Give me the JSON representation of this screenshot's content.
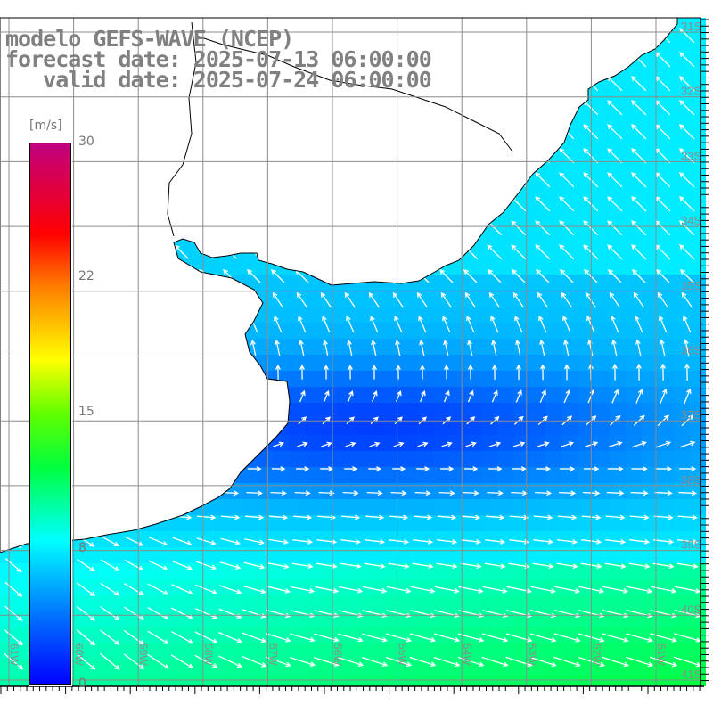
{
  "title": {
    "model": "modelo GEFS-WAVE (NCEP)",
    "forecast": "forecast date: 2025-07-13 06:00:00",
    "valid": "   valid date: 2025-07-24 06:00:00"
  },
  "colorbar": {
    "unit": "[m/s]",
    "ticks": [
      "30",
      "22",
      "15",
      "8",
      "0"
    ],
    "min": 0,
    "max": 30,
    "stops": [
      {
        "v": 0,
        "c": "#0000ff"
      },
      {
        "v": 4,
        "c": "#0078ff"
      },
      {
        "v": 8,
        "c": "#00ffff"
      },
      {
        "v": 12,
        "c": "#00ff40"
      },
      {
        "v": 15,
        "c": "#60ff00"
      },
      {
        "v": 18,
        "c": "#ffff00"
      },
      {
        "v": 22,
        "c": "#ff8000"
      },
      {
        "v": 25,
        "c": "#ff0000"
      },
      {
        "v": 30,
        "c": "#c00080"
      }
    ]
  },
  "axes": {
    "lon_labels": [
      "61W",
      "60W",
      "59W",
      "58W",
      "57W",
      "56W",
      "55W",
      "54W",
      "53W",
      "52W",
      "51W"
    ],
    "lat_labels": [
      "31S",
      "32S",
      "33S",
      "34S",
      "35S",
      "36S",
      "37S",
      "38S",
      "39S",
      "40S",
      "41S"
    ]
  },
  "colors": {
    "grid": "#8c8c8c",
    "label": "#8c8c8c",
    "land": "#ffffff",
    "coast": "#000000",
    "arrow": "#ffffff"
  }
}
